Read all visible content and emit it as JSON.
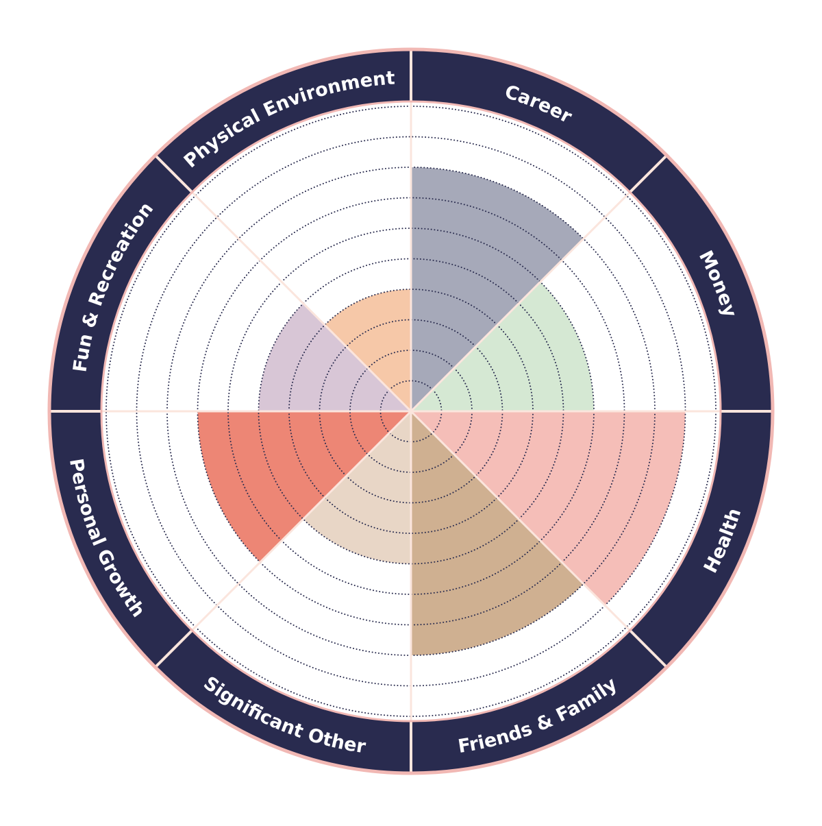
{
  "chart_data": {
    "type": "polar-area",
    "max_value": 10,
    "grid": true,
    "categories": [
      "Career",
      "Money",
      "Health",
      "Friends & Family",
      "Significant Other",
      "Personal Growth",
      "Fun & Recreation",
      "Physical Environment"
    ],
    "values": [
      8,
      6,
      9,
      8,
      5,
      7,
      5,
      4
    ],
    "colors": [
      "#a6a9b9",
      "#d5e8d3",
      "#f5beb8",
      "#cfb091",
      "#e8d6c6",
      "#ed8675",
      "#d8c6d6",
      "#f6c8a8"
    ]
  },
  "theme": {
    "ring_color": "#292b4f",
    "border_color": "#f1b8b4",
    "label_color": "#ffffff",
    "grid_color": "#2c2e50",
    "spoke_color": "#fbe5dd"
  }
}
